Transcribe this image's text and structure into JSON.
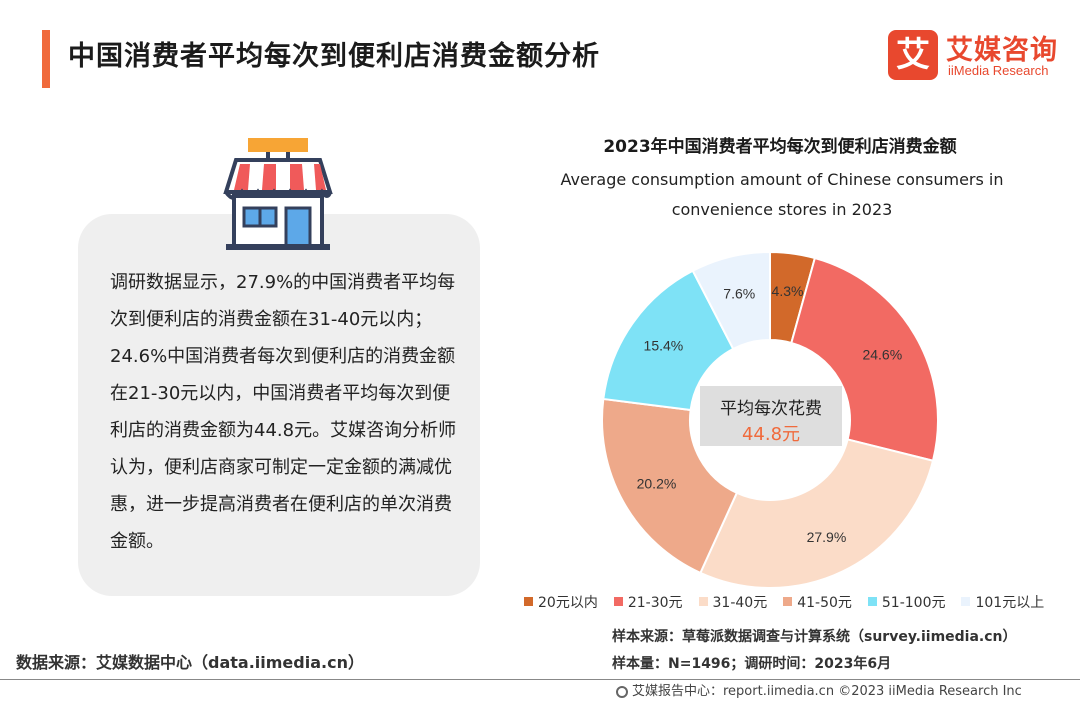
{
  "header": {
    "title": "中国消费者平均每次到便利店消费金额分析"
  },
  "brand": {
    "mark": "艾",
    "cn": "艾媒咨询",
    "en": "iiMedia Research"
  },
  "analysis": {
    "text": "调研数据显示，27.9%的中国消费者平均每次到便利店的消费金额在31-40元以内；24.6%中国消费者每次到便利店的消费金额在21-30元以内，中国消费者平均每次到便利店的消费金额为44.8元。艾媒咨询分析师认为，便利店商家可制定一定金额的满减优惠，进一步提高消费者在便利店的单次消费金额。"
  },
  "source_left": "数据来源：艾媒数据中心（data.iimedia.cn）",
  "sample": {
    "source": "样本来源：草莓派数据调查与计算系统（survey.iimedia.cn）",
    "size": "样本量：N=1496；调研时间：2023年6月"
  },
  "footer": {
    "text": "艾媒报告中心：report.iimedia.cn   ©2023  iiMedia Research Inc"
  },
  "chart_data": {
    "type": "pie",
    "title": "2023年中国消费者平均每次到便利店消费金额",
    "subtitle_line1": "Average consumption amount of Chinese consumers in",
    "subtitle_line2": "convenience stores in 2023",
    "center_label": "平均每次花费",
    "center_value": "44.8元",
    "categories": [
      "20元以内",
      "21-30元",
      "31-40元",
      "41-50元",
      "51-100元",
      "101元以上"
    ],
    "values": [
      4.3,
      24.6,
      27.9,
      20.2,
      15.4,
      7.6
    ],
    "value_labels": [
      "4.3%",
      "24.6%",
      "27.9%",
      "20.2%",
      "15.4%",
      "7.6%"
    ],
    "colors": [
      "#d2692a",
      "#f26a63",
      "#fbdcc8",
      "#eea98a",
      "#7ee2f6",
      "#eaf3fd"
    ],
    "legend_position": "bottom"
  }
}
